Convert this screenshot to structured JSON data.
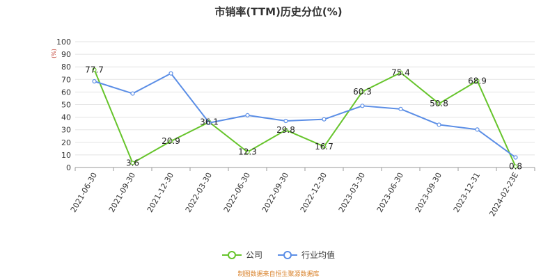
{
  "chart_data": {
    "type": "line",
    "title": "市销率(TTM)历史分位(%)",
    "ylabel": "(%)",
    "ylim": [
      0,
      100
    ],
    "yticks": [
      0,
      10,
      20,
      30,
      40,
      50,
      60,
      70,
      80,
      90,
      100
    ],
    "grid": true,
    "legend_position": "bottom",
    "categories": [
      "2021-06-30",
      "2021-09-30",
      "2021-12-30",
      "2022-03-30",
      "2022-06-30",
      "2022-09-30",
      "2022-12-30",
      "2023-03-30",
      "2023-06-30",
      "2023-09-30",
      "2023-12-31",
      "2024-02-23E"
    ],
    "series": [
      {
        "name": "公司",
        "color": "#66c42b",
        "values": [
          77.7,
          3.6,
          20.9,
          36.1,
          12.3,
          29.8,
          16.7,
          60.3,
          75.4,
          50.8,
          68.9,
          0.8
        ],
        "labels": [
          "77.7",
          "3.6",
          "20.9",
          "36.1",
          "12.3",
          "29.8",
          "16.7",
          "60.3",
          "75.4",
          "50.8",
          "68.9",
          "0.8"
        ]
      },
      {
        "name": "行业均值",
        "color": "#5b8ee6",
        "values": [
          68.5,
          58.8,
          74.8,
          35.5,
          41.5,
          37.0,
          38.3,
          49.0,
          46.5,
          34.0,
          30.2,
          8.0
        ]
      }
    ]
  },
  "footer": {
    "source": "制图数据来自恒生聚源数据库"
  }
}
